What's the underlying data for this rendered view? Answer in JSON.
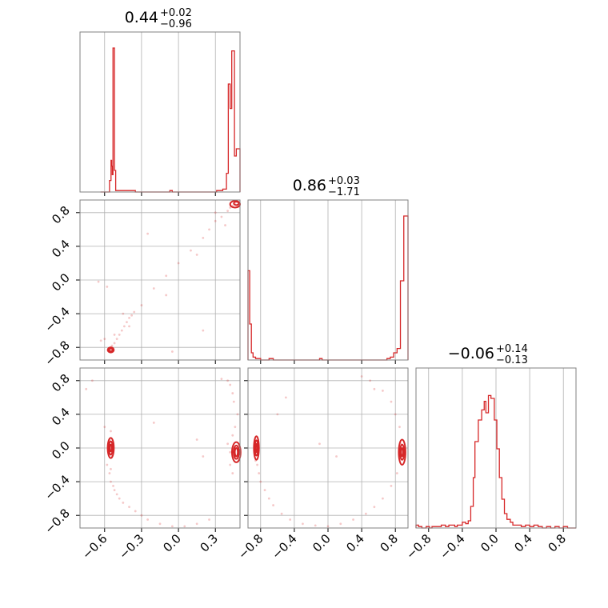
{
  "colors": {
    "accent": "#d62728",
    "grid": "#b0b0b0",
    "frame": "#808080"
  },
  "chart_data": [
    {
      "type": "histogram",
      "panel": "diag-0",
      "title": {
        "value": "0.44",
        "upper": "+0.02",
        "lower": "−0.96"
      },
      "xlim": [
        -0.8,
        0.5
      ],
      "bins": [
        [
          -0.633,
          0.0
        ],
        [
          -0.56,
          0.08
        ],
        [
          -0.548,
          0.22
        ],
        [
          -0.543,
          0.18
        ],
        [
          -0.538,
          0.12
        ],
        [
          -0.532,
          1.0
        ],
        [
          -0.52,
          0.15
        ],
        [
          -0.51,
          0.01
        ],
        [
          -0.47,
          0.01
        ],
        [
          -0.42,
          0.01
        ],
        [
          -0.35,
          0.0
        ],
        [
          -0.07,
          0.01
        ],
        [
          -0.05,
          0.0
        ],
        [
          0.31,
          0.01
        ],
        [
          0.33,
          0.01
        ],
        [
          0.36,
          0.02
        ],
        [
          0.39,
          0.13
        ],
        [
          0.405,
          0.75
        ],
        [
          0.42,
          0.58
        ],
        [
          0.433,
          0.98
        ],
        [
          0.455,
          0.25
        ],
        [
          0.47,
          0.3
        ],
        [
          0.49,
          0.3
        ]
      ]
    },
    {
      "type": "histogram",
      "panel": "diag-1",
      "title": {
        "value": "0.86",
        "upper": "+0.03",
        "lower": "−1.71"
      },
      "xlim": [
        -0.95,
        0.95
      ],
      "bins": [
        [
          -0.95,
          0.62
        ],
        [
          -0.93,
          0.25
        ],
        [
          -0.91,
          0.05
        ],
        [
          -0.89,
          0.02
        ],
        [
          -0.86,
          0.01
        ],
        [
          -0.8,
          0.0
        ],
        [
          -0.7,
          0.01
        ],
        [
          -0.65,
          0.0
        ],
        [
          -0.1,
          0.01
        ],
        [
          -0.07,
          0.0
        ],
        [
          0.7,
          0.01
        ],
        [
          0.74,
          0.02
        ],
        [
          0.78,
          0.05
        ],
        [
          0.82,
          0.08
        ],
        [
          0.86,
          0.55
        ],
        [
          0.9,
          1.0
        ]
      ]
    },
    {
      "type": "histogram",
      "panel": "diag-2",
      "title": {
        "value": "−0.06",
        "upper": "+0.14",
        "lower": "−0.13"
      },
      "xlim": [
        -0.95,
        0.95
      ],
      "bins": [
        [
          -0.95,
          0.02
        ],
        [
          -0.92,
          0.01
        ],
        [
          -0.88,
          0.0
        ],
        [
          -0.83,
          0.01
        ],
        [
          -0.79,
          0.0
        ],
        [
          -0.76,
          0.01
        ],
        [
          -0.7,
          0.01
        ],
        [
          -0.65,
          0.02
        ],
        [
          -0.6,
          0.01
        ],
        [
          -0.56,
          0.02
        ],
        [
          -0.53,
          0.02
        ],
        [
          -0.49,
          0.01
        ],
        [
          -0.46,
          0.02
        ],
        [
          -0.43,
          0.02
        ],
        [
          -0.4,
          0.04
        ],
        [
          -0.36,
          0.03
        ],
        [
          -0.33,
          0.05
        ],
        [
          -0.3,
          0.15
        ],
        [
          -0.27,
          0.35
        ],
        [
          -0.25,
          0.6
        ],
        [
          -0.21,
          0.75
        ],
        [
          -0.17,
          0.82
        ],
        [
          -0.14,
          0.88
        ],
        [
          -0.12,
          0.8
        ],
        [
          -0.09,
          0.92
        ],
        [
          -0.06,
          0.9
        ],
        [
          -0.02,
          0.75
        ],
        [
          0.01,
          0.55
        ],
        [
          0.04,
          0.35
        ],
        [
          0.07,
          0.2
        ],
        [
          0.1,
          0.1
        ],
        [
          0.13,
          0.06
        ],
        [
          0.17,
          0.04
        ],
        [
          0.2,
          0.02
        ],
        [
          0.25,
          0.02
        ],
        [
          0.3,
          0.01
        ],
        [
          0.35,
          0.02
        ],
        [
          0.4,
          0.01
        ],
        [
          0.45,
          0.02
        ],
        [
          0.5,
          0.01
        ],
        [
          0.55,
          0.0
        ],
        [
          0.6,
          0.01
        ],
        [
          0.65,
          0.0
        ],
        [
          0.7,
          0.01
        ],
        [
          0.75,
          0.0
        ],
        [
          0.8,
          0.01
        ],
        [
          0.85,
          0.0
        ],
        [
          0.95,
          0.0
        ]
      ]
    },
    {
      "type": "scatter",
      "panel": "pair-1-0",
      "xlim": [
        -0.8,
        0.5
      ],
      "ylim": [
        -0.95,
        0.95
      ],
      "points": [
        [
          -0.55,
          -0.83
        ],
        [
          -0.56,
          -0.84
        ],
        [
          -0.54,
          -0.85
        ],
        [
          -0.55,
          -0.86
        ],
        [
          -0.53,
          -0.84
        ],
        [
          -0.56,
          -0.82
        ],
        [
          -0.55,
          -0.8
        ],
        [
          -0.54,
          -0.78
        ],
        [
          -0.52,
          -0.75
        ],
        [
          -0.5,
          -0.7
        ],
        [
          -0.48,
          -0.65
        ],
        [
          -0.46,
          -0.6
        ],
        [
          -0.44,
          -0.55
        ],
        [
          -0.42,
          -0.5
        ],
        [
          -0.4,
          -0.45
        ],
        [
          -0.38,
          -0.42
        ],
        [
          -0.36,
          -0.38
        ],
        [
          -0.3,
          -0.3
        ],
        [
          -0.2,
          -0.1
        ],
        [
          -0.1,
          0.05
        ],
        [
          0.0,
          0.2
        ],
        [
          0.1,
          0.35
        ],
        [
          0.15,
          0.3
        ],
        [
          0.2,
          0.5
        ],
        [
          0.25,
          0.6
        ],
        [
          0.3,
          0.7
        ],
        [
          0.35,
          0.75
        ],
        [
          0.4,
          0.82
        ],
        [
          0.42,
          0.86
        ],
        [
          0.44,
          0.88
        ],
        [
          0.46,
          0.9
        ],
        [
          0.48,
          0.89
        ],
        [
          -0.65,
          -0.02
        ],
        [
          -0.58,
          -0.08
        ],
        [
          -0.52,
          -0.65
        ],
        [
          -0.6,
          -0.7
        ],
        [
          -0.63,
          -0.72
        ],
        [
          -0.25,
          0.55
        ],
        [
          -0.1,
          -0.18
        ],
        [
          -0.05,
          -0.85
        ],
        [
          0.2,
          -0.6
        ],
        [
          0.3,
          0.8
        ],
        [
          0.38,
          0.65
        ],
        [
          -0.4,
          -0.55
        ],
        [
          -0.45,
          -0.4
        ]
      ],
      "contours": [
        {
          "center": [
            -0.55,
            -0.83
          ],
          "rx": 0.025,
          "ry": 0.03
        },
        {
          "center": [
            -0.55,
            -0.83
          ],
          "rx": 0.015,
          "ry": 0.018
        },
        {
          "center": [
            0.46,
            0.9
          ],
          "rx": 0.04,
          "ry": 0.04
        },
        {
          "center": [
            0.47,
            0.91
          ],
          "rx": 0.02,
          "ry": 0.02
        }
      ]
    },
    {
      "type": "scatter",
      "panel": "pair-2-0",
      "xlim": [
        -0.8,
        0.5
      ],
      "ylim": [
        -0.95,
        0.95
      ],
      "points": [
        [
          -0.55,
          0.2
        ],
        [
          -0.56,
          0.1
        ],
        [
          -0.54,
          -0.1
        ],
        [
          -0.55,
          -0.25
        ],
        [
          -0.56,
          -0.3
        ],
        [
          -0.55,
          -0.4
        ],
        [
          -0.53,
          -0.45
        ],
        [
          -0.52,
          -0.5
        ],
        [
          -0.5,
          -0.55
        ],
        [
          -0.48,
          -0.6
        ],
        [
          -0.45,
          -0.65
        ],
        [
          -0.4,
          -0.7
        ],
        [
          -0.35,
          -0.75
        ],
        [
          -0.3,
          -0.8
        ],
        [
          -0.25,
          -0.85
        ],
        [
          -0.15,
          -0.9
        ],
        [
          -0.05,
          -0.93
        ],
        [
          0.05,
          -0.93
        ],
        [
          0.15,
          -0.9
        ],
        [
          0.25,
          -0.85
        ],
        [
          0.4,
          0.05
        ],
        [
          0.42,
          -0.05
        ],
        [
          0.44,
          0.15
        ],
        [
          0.46,
          0.25
        ],
        [
          0.48,
          0.4
        ],
        [
          0.45,
          0.55
        ],
        [
          0.44,
          0.65
        ],
        [
          0.42,
          0.75
        ],
        [
          0.4,
          0.8
        ],
        [
          0.35,
          0.82
        ],
        [
          0.42,
          -0.2
        ],
        [
          0.44,
          -0.3
        ],
        [
          -0.6,
          0.25
        ],
        [
          -0.58,
          -0.2
        ],
        [
          -0.2,
          0.3
        ],
        [
          0.2,
          -0.1
        ],
        [
          0.15,
          0.1
        ],
        [
          -0.7,
          0.8
        ],
        [
          -0.75,
          0.7
        ]
      ],
      "contours": [
        {
          "center": [
            -0.55,
            0.0
          ],
          "rx": 0.025,
          "ry": 0.12
        },
        {
          "center": [
            -0.55,
            0.0
          ],
          "rx": 0.015,
          "ry": 0.08
        },
        {
          "center": [
            -0.55,
            0.0
          ],
          "rx": 0.008,
          "ry": 0.04
        },
        {
          "center": [
            0.47,
            -0.05
          ],
          "rx": 0.035,
          "ry": 0.12
        },
        {
          "center": [
            0.47,
            -0.05
          ],
          "rx": 0.022,
          "ry": 0.08
        },
        {
          "center": [
            0.47,
            -0.05
          ],
          "rx": 0.012,
          "ry": 0.05
        }
      ]
    },
    {
      "type": "scatter",
      "panel": "pair-2-1",
      "xlim": [
        -0.95,
        0.95
      ],
      "ylim": [
        -0.95,
        0.95
      ],
      "points": [
        [
          -0.86,
          0.1
        ],
        [
          -0.85,
          -0.05
        ],
        [
          -0.86,
          -0.15
        ],
        [
          -0.84,
          -0.2
        ],
        [
          -0.82,
          -0.3
        ],
        [
          -0.8,
          -0.4
        ],
        [
          -0.75,
          -0.5
        ],
        [
          -0.7,
          -0.6
        ],
        [
          -0.65,
          -0.68
        ],
        [
          -0.55,
          -0.78
        ],
        [
          -0.45,
          -0.85
        ],
        [
          -0.3,
          -0.9
        ],
        [
          -0.15,
          -0.92
        ],
        [
          0.0,
          -0.93
        ],
        [
          0.15,
          -0.9
        ],
        [
          0.3,
          -0.85
        ],
        [
          0.45,
          -0.78
        ],
        [
          0.55,
          -0.7
        ],
        [
          0.65,
          -0.6
        ],
        [
          0.75,
          -0.45
        ],
        [
          0.82,
          -0.3
        ],
        [
          0.86,
          -0.1
        ],
        [
          0.87,
          0.05
        ],
        [
          0.85,
          0.25
        ],
        [
          0.8,
          0.4
        ],
        [
          0.75,
          0.55
        ],
        [
          0.65,
          0.68
        ],
        [
          0.5,
          0.8
        ],
        [
          0.4,
          0.85
        ],
        [
          -0.6,
          0.4
        ],
        [
          -0.1,
          0.05
        ],
        [
          0.1,
          -0.1
        ],
        [
          -0.5,
          0.6
        ],
        [
          0.55,
          0.7
        ]
      ],
      "contours": [
        {
          "center": [
            -0.85,
            0.0
          ],
          "rx": 0.03,
          "ry": 0.14
        },
        {
          "center": [
            -0.85,
            0.0
          ],
          "rx": 0.02,
          "ry": 0.09
        },
        {
          "center": [
            -0.85,
            0.0
          ],
          "rx": 0.01,
          "ry": 0.05
        },
        {
          "center": [
            0.88,
            -0.05
          ],
          "rx": 0.04,
          "ry": 0.15
        },
        {
          "center": [
            0.88,
            -0.05
          ],
          "rx": 0.025,
          "ry": 0.09
        },
        {
          "center": [
            0.88,
            -0.05
          ],
          "rx": 0.012,
          "ry": 0.05
        }
      ]
    }
  ],
  "ticks": {
    "col0_x": [
      "−0.6",
      "−0.3",
      "0.0",
      "0.3"
    ],
    "col0_x_values": [
      -0.6,
      -0.3,
      0.0,
      0.3
    ],
    "col12_x": [
      "−0.8",
      "−0.4",
      "0.0",
      "0.4",
      "0.8"
    ],
    "col12_x_values": [
      -0.8,
      -0.4,
      0.0,
      0.4,
      0.8
    ],
    "row_y": [
      "−0.8",
      "−0.4",
      "0.0",
      "0.4",
      "0.8"
    ],
    "row_y_values": [
      -0.8,
      -0.4,
      0.0,
      0.4,
      0.8
    ]
  }
}
